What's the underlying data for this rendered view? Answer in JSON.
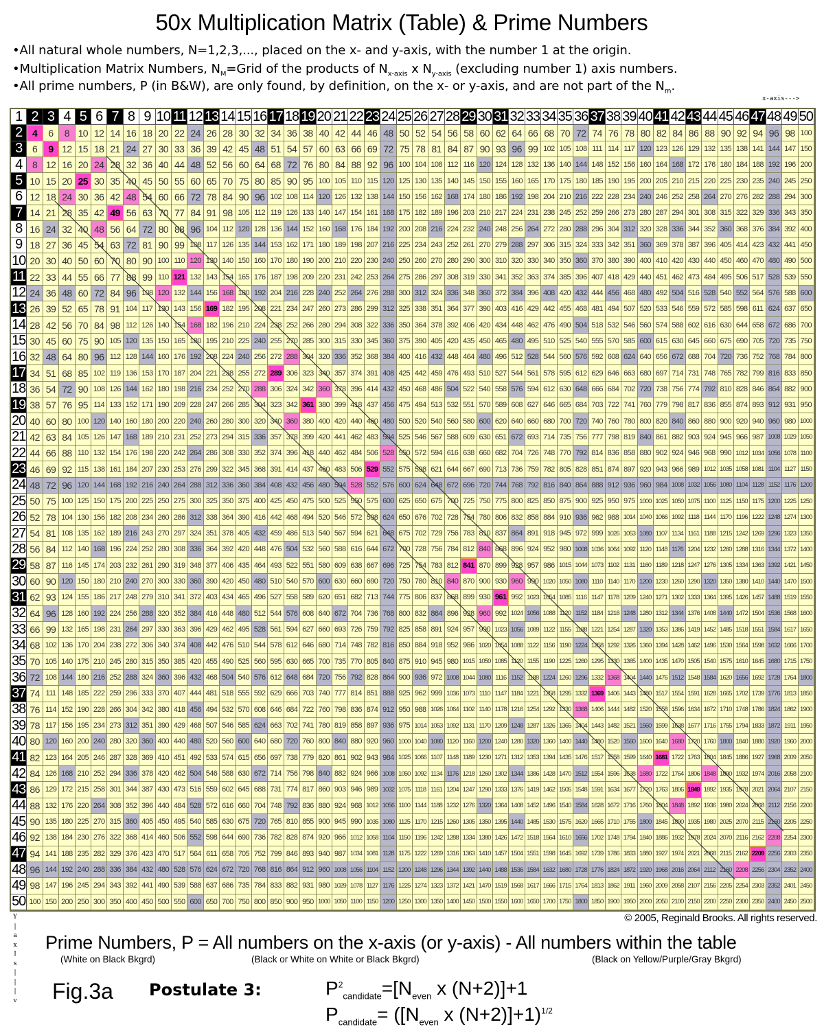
{
  "title": "50x Multiplication Matrix (Table) & Prime Numbers",
  "bullets": {
    "b1": "•All natural whole numbers, N=1,2,3,..., placed on the x- and y-axis, with the number 1 at the origin.",
    "b2_a": "•Multiplication Matrix Numbers, N",
    "b2_sub1": "M",
    "b2_b": "=Grid of the products of N",
    "b2_sub2": "x-axis",
    "b2_c": " x  N",
    "b2_sub3": "y-axis",
    "b2_d": " (excluding number 1) axis numbers.",
    "b3_a": "•All prime numbers, P (in B&W), are only found, by definition, on the x- or y-axis, and are not part of the N",
    "b3_sub": "m",
    "b3_b": "."
  },
  "x_axis_label": "x-axis--->",
  "y_axis_label": [
    "Y",
    "|",
    "a",
    "x",
    "I",
    "s",
    "|",
    "|",
    "|",
    "v"
  ],
  "axis_numbers": [
    1,
    2,
    3,
    4,
    5,
    6,
    7,
    8,
    9,
    10,
    11,
    12,
    13,
    14,
    15,
    16,
    17,
    18,
    19,
    20,
    21,
    22,
    23,
    24,
    25,
    26,
    27,
    28,
    29,
    30,
    31,
    32,
    33,
    34,
    35,
    36,
    37,
    38,
    39,
    40,
    41,
    42,
    43,
    44,
    45,
    46,
    47,
    48,
    49,
    50
  ],
  "primes": [
    2,
    3,
    5,
    7,
    11,
    13,
    17,
    19,
    23,
    29,
    31,
    37,
    41,
    43,
    47
  ],
  "colors": {
    "cell": "#ffffc8",
    "prime_header": "#000000",
    "gray": "#b7b7cb",
    "pink": "#f77fd0",
    "prime_square": "#ff44cc",
    "grid_line": "#8c8c5e"
  },
  "copyright": "© 2005, Reginald Brooks. All rights reserved.",
  "definition": "Prime Numbers, P = All numbers on the x-axis (or y-axis) - All numbers within the table",
  "definition_notes": [
    "(White on Black Bkgrd)",
    "(Black or White on White or Black Bkgrd)",
    "(Black  on Yellow/Purple/Gray  Bkgrd)"
  ],
  "figure": "Fig.3a",
  "postulate": "Postulate 3:",
  "formula1": {
    "p": "P",
    "sup": "2",
    "sub": "candidate",
    "eq": "=[N",
    "sub2": "even",
    "rest": " x (N+2)]+1"
  },
  "formula2": {
    "p": "P",
    "sub": "candidate",
    "eq": "= ([N",
    "sub2": "even",
    "rest": " x (N+2)]+1)",
    "sup": "1/2"
  }
}
